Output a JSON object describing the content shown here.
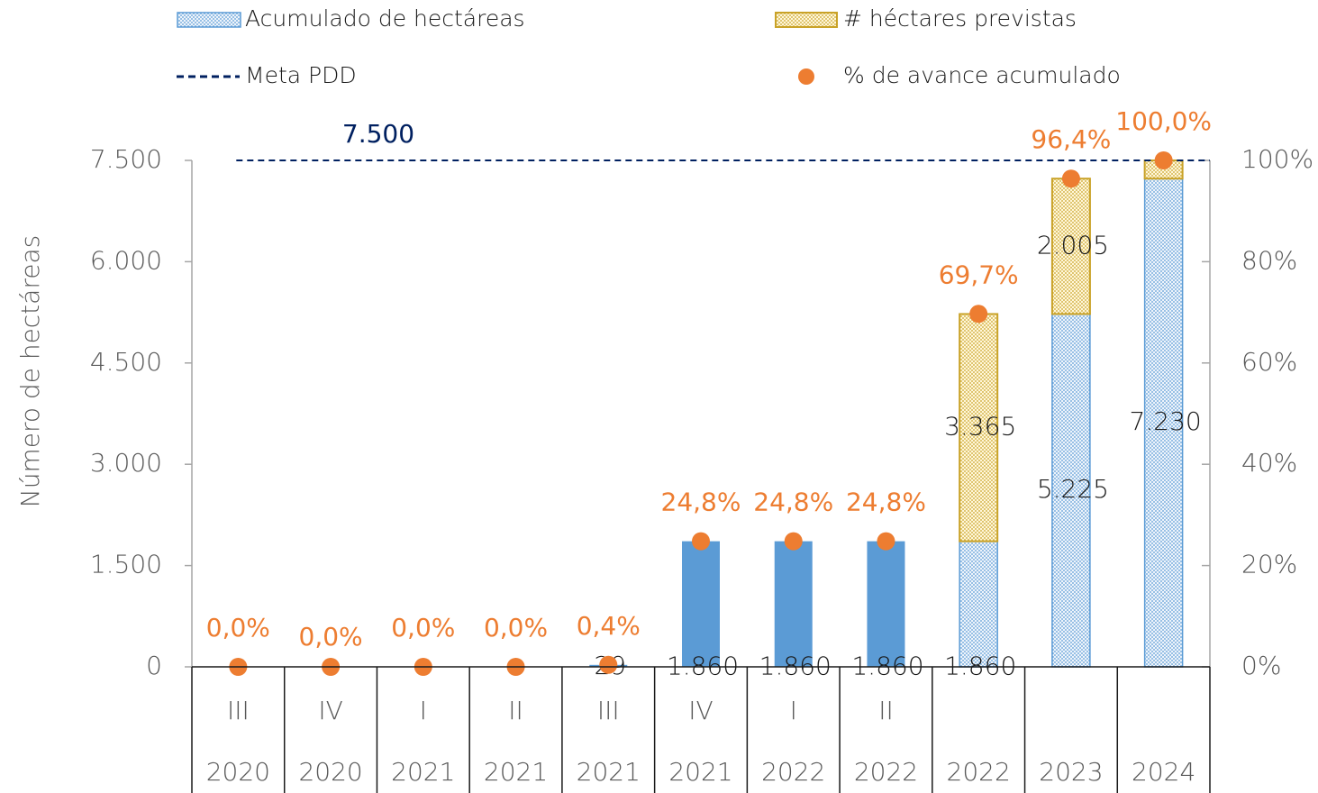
{
  "chart_data": {
    "type": "bar",
    "ylabel": "Número de hectáreas",
    "categories": [
      "III",
      "IV",
      "I",
      "II",
      "III",
      "IV",
      "I",
      "II",
      null,
      null,
      null
    ],
    "years": [
      "2020",
      "2020",
      "2021",
      "2021",
      "2021",
      "2021",
      "2022",
      "2022",
      "2022",
      "2023",
      "2024"
    ],
    "series": [
      {
        "name": "Acumulado de hectáreas",
        "color": "#5b9bd5",
        "values": [
          0,
          0,
          0,
          0,
          29,
          1860,
          1860,
          1860,
          1860,
          5225,
          7230
        ],
        "value_labels": [
          null,
          null,
          null,
          null,
          "29",
          "1.860",
          "1.860",
          "1.860",
          "1.860",
          "5.225",
          "7.230"
        ]
      },
      {
        "name": "# héctares previstas",
        "color": "#c9a227",
        "values": [
          null,
          null,
          null,
          null,
          null,
          null,
          null,
          null,
          3365,
          2005,
          270
        ],
        "value_labels": [
          null,
          null,
          null,
          null,
          null,
          null,
          null,
          null,
          "3.365",
          "2.005",
          null
        ]
      },
      {
        "name": "Meta PDD",
        "color": "#002060",
        "value": 7500,
        "value_label": "7.500"
      },
      {
        "name": "% de avance acumulado",
        "color": "#ed7d31",
        "axis": "y2",
        "values": [
          0,
          0,
          0,
          0,
          0.4,
          24.8,
          24.8,
          24.8,
          69.7,
          96.4,
          100
        ],
        "value_labels": [
          "0,0%",
          "0,0%",
          "0,0%",
          "0,0%",
          "0,4%",
          "24,8%",
          "24,8%",
          "24,8%",
          "69,7%",
          "96,4%",
          "100,0%"
        ]
      }
    ],
    "ylim": [
      0,
      7500
    ],
    "yticks": [
      0,
      {
        "value": 1500,
        "label": "1.500"
      },
      {
        "value": 3000,
        "label": "3.000"
      },
      {
        "value": 4500,
        "label": "4.500"
      },
      {
        "value": 6000,
        "label": "6.000"
      },
      {
        "value": 7500,
        "label": "7.500"
      }
    ],
    "y2lim": [
      0,
      100
    ],
    "y2ticks": [
      {
        "value": 0,
        "label": "0%"
      },
      {
        "value": 20,
        "label": "20%"
      },
      {
        "value": 40,
        "label": "40%"
      },
      {
        "value": 60,
        "label": "60%"
      },
      {
        "value": 80,
        "label": "80%"
      },
      {
        "value": 100,
        "label": "100%"
      }
    ]
  }
}
